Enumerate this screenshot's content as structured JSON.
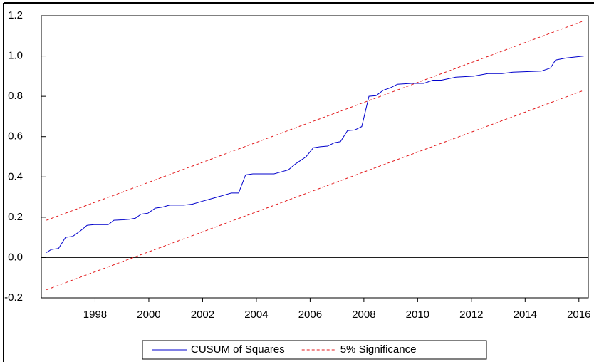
{
  "chart_data": {
    "type": "line",
    "xlim": [
      1996.0,
      2016.35
    ],
    "xticks": [
      1998,
      2000,
      2002,
      2004,
      2006,
      2008,
      2010,
      2012,
      2014,
      2016
    ],
    "ylim": [
      -0.2,
      1.2
    ],
    "yticks": [
      {
        "value": -0.2,
        "label": "-0.2"
      },
      {
        "value": 0,
        "label": "0.0"
      },
      0.2,
      0.4,
      0.6,
      0.8,
      {
        "value": 1,
        "label": "1.0"
      },
      1.2
    ],
    "legend": "bottom",
    "series": [
      {
        "name": "CUSUM of Squares",
        "color": "#0000cc",
        "dash": "solid",
        "x": [
          1996.19,
          1996.37,
          1996.64,
          1996.9,
          1997.17,
          1997.43,
          1997.7,
          1997.96,
          1998.49,
          1998.7,
          1999.02,
          1999.28,
          1999.5,
          1999.71,
          1999.97,
          2000.24,
          2000.5,
          2000.77,
          2001.3,
          2001.62,
          2002.01,
          2002.41,
          2002.81,
          2003.07,
          2003.34,
          2003.6,
          2003.87,
          2004.66,
          2004.93,
          2005.19,
          2005.46,
          2005.85,
          2006.12,
          2006.38,
          2006.65,
          2006.91,
          2007.13,
          2007.39,
          2007.66,
          2007.92,
          2008.19,
          2008.45,
          2008.72,
          2008.98,
          2009.25,
          2009.77,
          2010.23,
          2010.57,
          2010.89,
          2011.42,
          2012.08,
          2012.61,
          2013.14,
          2013.54,
          2014.6,
          2014.94,
          2015.13,
          2015.52,
          2016.19
        ],
        "values": [
          0.025,
          0.04,
          0.045,
          0.1,
          0.105,
          0.13,
          0.16,
          0.163,
          0.163,
          0.185,
          0.187,
          0.19,
          0.195,
          0.215,
          0.22,
          0.245,
          0.25,
          0.26,
          0.26,
          0.265,
          0.28,
          0.295,
          0.31,
          0.32,
          0.32,
          0.41,
          0.415,
          0.415,
          0.425,
          0.435,
          0.465,
          0.5,
          0.545,
          0.55,
          0.553,
          0.57,
          0.575,
          0.63,
          0.633,
          0.65,
          0.8,
          0.803,
          0.83,
          0.842,
          0.86,
          0.864,
          0.864,
          0.88,
          0.88,
          0.895,
          0.9,
          0.913,
          0.913,
          0.92,
          0.925,
          0.94,
          0.98,
          0.99,
          1.0
        ]
      },
      {
        "name": "5% Significance",
        "color": "#e31a1c",
        "dash": "dashed",
        "x": [
          1996.19,
          2016.19
        ],
        "values": [
          0.185,
          1.175
        ]
      },
      {
        "name": null,
        "color": "#e31a1c",
        "dash": "dashed",
        "x": [
          1996.19,
          2016.19
        ],
        "values": [
          -0.16,
          0.83
        ]
      }
    ]
  }
}
